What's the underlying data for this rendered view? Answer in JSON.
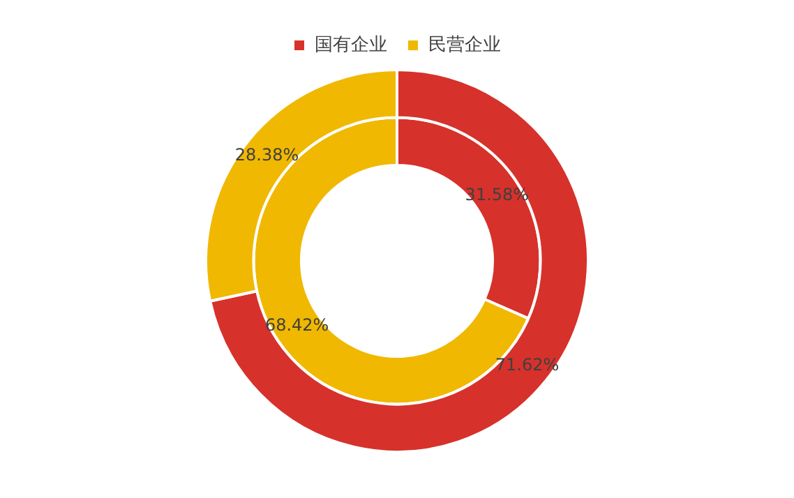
{
  "chart_data": {
    "type": "donut",
    "categories": [
      "国有企业",
      "民营企业"
    ],
    "colors": [
      "#d7312b",
      "#f0b800"
    ],
    "series": [
      {
        "values": [
          71.62,
          28.38
        ],
        "value_labels": [
          "71.62%",
          "28.38%"
        ]
      },
      {
        "values": [
          31.58,
          68.42
        ],
        "value_labels": [
          "31.58%",
          "68.42%"
        ]
      }
    ],
    "legend": "top"
  }
}
